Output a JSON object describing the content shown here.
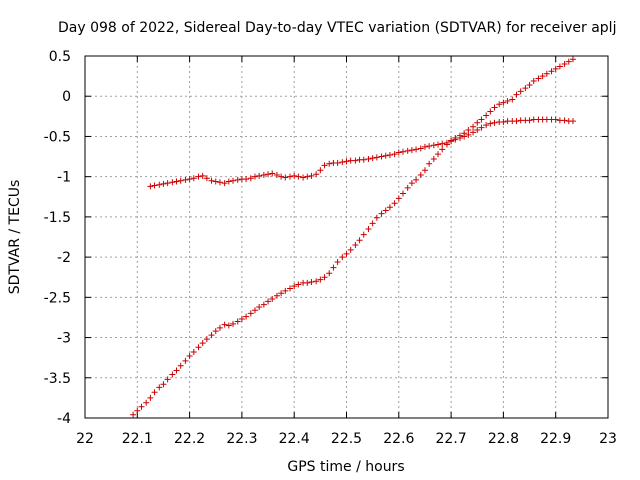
{
  "chart_data": {
    "type": "scatter",
    "title": "Day 098 of 2022, Sidereal Day-to-day VTEC variation (SDTVAR) for receiver aplj",
    "xlabel": "GPS time / hours",
    "ylabel": "SDTVAR / TECUs",
    "xlim": [
      22,
      23
    ],
    "ylim": [
      -4,
      0.5
    ],
    "xticks": [
      "22",
      "22.1",
      "22.2",
      "22.3",
      "22.4",
      "22.5",
      "22.6",
      "22.7",
      "22.8",
      "22.9",
      "23"
    ],
    "yticks": [
      "0.5",
      "0",
      "-0.5",
      "-1",
      "-1.5",
      "-2",
      "-2.5",
      "-3",
      "-3.5",
      "-4"
    ],
    "grid": true,
    "marker": "plus",
    "color": "#cc0000",
    "series": [
      {
        "x": [
          22.125,
          22.133,
          22.142,
          22.15,
          22.158,
          22.167,
          22.175,
          22.183,
          22.192,
          22.2,
          22.208,
          22.217,
          22.225,
          22.233,
          22.242,
          22.25,
          22.258,
          22.267,
          22.275,
          22.283,
          22.292,
          22.3,
          22.308,
          22.317,
          22.325,
          22.333,
          22.342,
          22.35,
          22.358,
          22.367,
          22.375,
          22.383,
          22.392,
          22.4,
          22.408,
          22.417,
          22.425,
          22.433,
          22.442,
          22.45,
          22.458,
          22.467,
          22.475,
          22.483,
          22.492,
          22.5,
          22.508,
          22.517,
          22.525,
          22.533,
          22.542,
          22.55,
          22.558,
          22.567,
          22.575,
          22.583,
          22.592,
          22.6,
          22.608,
          22.617,
          22.625,
          22.633,
          22.642,
          22.65,
          22.658,
          22.667,
          22.675,
          22.683,
          22.692,
          22.7,
          22.708,
          22.717,
          22.725,
          22.733,
          22.742,
          22.75,
          22.758,
          22.767,
          22.775,
          22.783,
          22.792,
          22.8,
          22.808,
          22.817,
          22.825,
          22.833,
          22.842,
          22.85,
          22.858,
          22.867,
          22.875,
          22.883,
          22.892,
          22.9,
          22.908,
          22.917,
          22.925,
          22.933
        ],
        "y": [
          -1.12,
          -1.11,
          -1.1,
          -1.09,
          -1.08,
          -1.07,
          -1.06,
          -1.05,
          -1.04,
          -1.03,
          -1.02,
          -1.0,
          -0.99,
          -1.02,
          -1.05,
          -1.06,
          -1.07,
          -1.08,
          -1.06,
          -1.05,
          -1.04,
          -1.03,
          -1.03,
          -1.02,
          -1.0,
          -0.99,
          -0.98,
          -0.97,
          -0.96,
          -0.98,
          -1.0,
          -1.01,
          -1.0,
          -0.99,
          -1.0,
          -1.01,
          -1.0,
          -0.99,
          -0.97,
          -0.92,
          -0.86,
          -0.84,
          -0.83,
          -0.83,
          -0.82,
          -0.81,
          -0.8,
          -0.8,
          -0.79,
          -0.79,
          -0.78,
          -0.77,
          -0.76,
          -0.75,
          -0.74,
          -0.73,
          -0.72,
          -0.7,
          -0.69,
          -0.68,
          -0.67,
          -0.66,
          -0.65,
          -0.63,
          -0.62,
          -0.61,
          -0.6,
          -0.59,
          -0.58,
          -0.56,
          -0.54,
          -0.52,
          -0.5,
          -0.48,
          -0.45,
          -0.42,
          -0.39,
          -0.36,
          -0.34,
          -0.33,
          -0.32,
          -0.32,
          -0.31,
          -0.31,
          -0.31,
          -0.3,
          -0.3,
          -0.3,
          -0.29,
          -0.29,
          -0.29,
          -0.29,
          -0.29,
          -0.29,
          -0.3,
          -0.3,
          -0.31,
          -0.31
        ]
      },
      {
        "x": [
          22.092,
          22.1,
          22.108,
          22.117,
          22.125,
          22.133,
          22.142,
          22.15,
          22.158,
          22.167,
          22.175,
          22.183,
          22.192,
          22.2,
          22.208,
          22.217,
          22.225,
          22.233,
          22.242,
          22.25,
          22.258,
          22.267,
          22.275,
          22.283,
          22.292,
          22.3,
          22.308,
          22.317,
          22.325,
          22.333,
          22.342,
          22.35,
          22.358,
          22.367,
          22.375,
          22.383,
          22.392,
          22.4,
          22.408,
          22.417,
          22.425,
          22.433,
          22.442,
          22.45,
          22.458,
          22.467,
          22.475,
          22.483,
          22.492,
          22.5,
          22.508,
          22.517,
          22.525,
          22.533,
          22.542,
          22.55,
          22.558,
          22.567,
          22.575,
          22.583,
          22.592,
          22.6,
          22.608,
          22.617,
          22.625,
          22.633,
          22.642,
          22.65,
          22.658,
          22.667,
          22.675,
          22.683,
          22.692,
          22.7,
          22.708,
          22.717,
          22.725,
          22.733,
          22.742,
          22.75,
          22.758,
          22.767,
          22.775,
          22.783,
          22.792,
          22.8,
          22.808,
          22.817,
          22.825,
          22.833,
          22.842,
          22.85,
          22.858,
          22.867,
          22.875,
          22.883,
          22.892,
          22.9,
          22.908,
          22.917,
          22.925,
          22.933
        ],
        "y": [
          -3.96,
          -3.91,
          -3.86,
          -3.81,
          -3.75,
          -3.68,
          -3.62,
          -3.58,
          -3.52,
          -3.46,
          -3.41,
          -3.35,
          -3.29,
          -3.23,
          -3.18,
          -3.12,
          -3.07,
          -3.02,
          -2.97,
          -2.92,
          -2.88,
          -2.84,
          -2.85,
          -2.83,
          -2.8,
          -2.77,
          -2.74,
          -2.7,
          -2.66,
          -2.62,
          -2.59,
          -2.55,
          -2.52,
          -2.48,
          -2.45,
          -2.42,
          -2.39,
          -2.36,
          -2.34,
          -2.32,
          -2.32,
          -2.31,
          -2.3,
          -2.28,
          -2.25,
          -2.2,
          -2.13,
          -2.06,
          -2.0,
          -1.96,
          -1.91,
          -1.85,
          -1.79,
          -1.72,
          -1.65,
          -1.58,
          -1.51,
          -1.46,
          -1.42,
          -1.38,
          -1.33,
          -1.27,
          -1.21,
          -1.14,
          -1.08,
          -1.04,
          -0.98,
          -0.92,
          -0.84,
          -0.78,
          -0.72,
          -0.66,
          -0.6,
          -0.55,
          -0.52,
          -0.49,
          -0.46,
          -0.42,
          -0.38,
          -0.33,
          -0.29,
          -0.24,
          -0.19,
          -0.14,
          -0.1,
          -0.08,
          -0.06,
          -0.04,
          0.02,
          0.06,
          0.1,
          0.14,
          0.19,
          0.22,
          0.25,
          0.28,
          0.31,
          0.34,
          0.37,
          0.4,
          0.43,
          0.46
        ]
      }
    ]
  }
}
